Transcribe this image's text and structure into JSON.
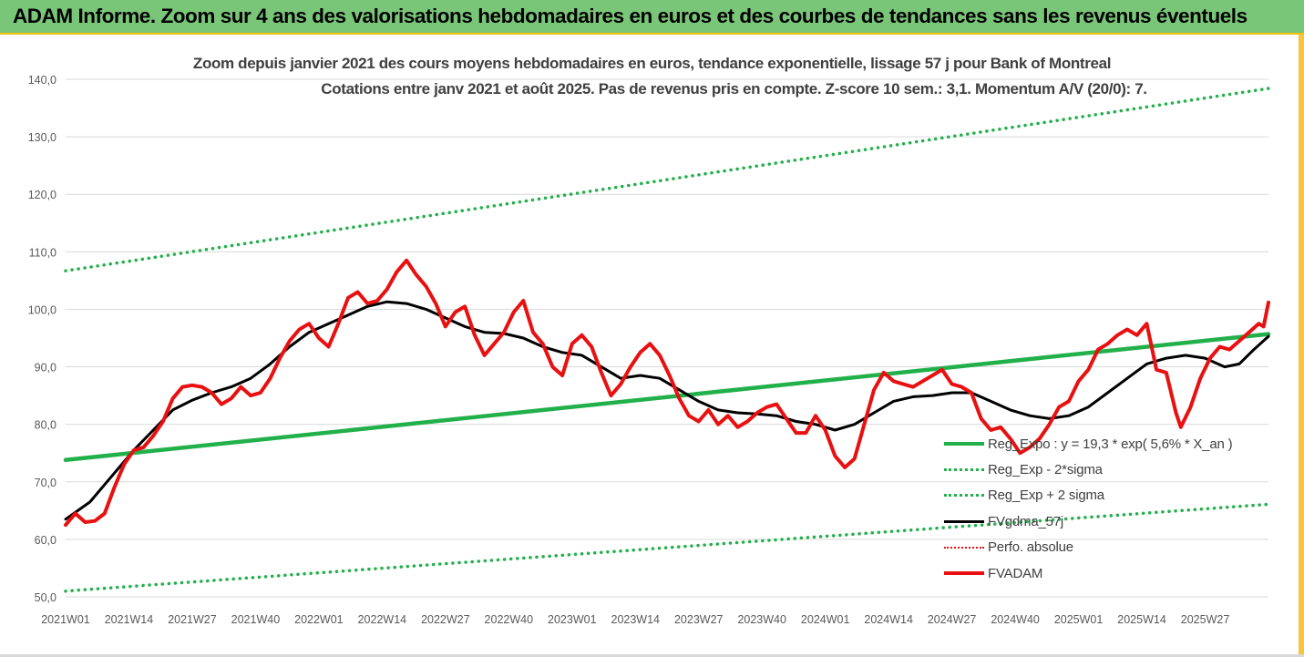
{
  "header": {
    "title": "ADAM Informe. Zoom sur 4 ans des valorisations hebdomadaires en euros et des courbes de tendances sans les revenus éventuels"
  },
  "colors": {
    "banner": "#7ac679",
    "trend": "#22b04b",
    "band": "#22b04b",
    "smooth": "#000000",
    "price": "#e81010",
    "perfo": "#e81010"
  },
  "chart_data": {
    "type": "line",
    "title": "Zoom depuis janvier 2021 des cours moyens hebdomadaires en euros, tendance exponentielle, lissage 57 j pour Bank of Montreal",
    "subtitle": "Cotations entre janv 2021 et août 2025.  Pas de revenus pris en compte. Z-score 10 sem.: 3,1. Momentum A/V (20/0): 7.",
    "ylim": [
      50,
      140
    ],
    "yticks": [
      "50,0",
      "60,0",
      "70,0",
      "80,0",
      "90,0",
      "100,0",
      "110,0",
      "120,0",
      "130,0",
      "140,0"
    ],
    "xticks": [
      "2021W01",
      "2021W14",
      "2021W27",
      "2021W40",
      "2022W01",
      "2022W14",
      "2022W27",
      "2022W40",
      "2023W01",
      "2023W14",
      "2023W27",
      "2023W40",
      "2024W01",
      "2024W14",
      "2024W27",
      "2024W40",
      "2025W01",
      "2025W14",
      "2025W27"
    ],
    "n_weeks": 248,
    "grid": "horizontal",
    "legend_position": "bottom-right",
    "series": [
      {
        "name": "Reg_Expo : y = 19,3 * exp( 5,6% *  X_an )",
        "style": "trend",
        "points": [
          [
            0,
            73.8
          ],
          [
            247,
            95.7
          ]
        ]
      },
      {
        "name": "Reg_Exp - 2*sigma",
        "style": "band",
        "points": [
          [
            0,
            51.0
          ],
          [
            247,
            66.1
          ]
        ]
      },
      {
        "name": "Reg_Exp + 2 sigma",
        "style": "band",
        "points": [
          [
            0,
            106.7
          ],
          [
            247,
            138.4
          ]
        ]
      },
      {
        "name": "FVgdma_57j",
        "style": "smooth",
        "points": [
          [
            0,
            63.5
          ],
          [
            5,
            66.5
          ],
          [
            10,
            71.5
          ],
          [
            14,
            75.5
          ],
          [
            18,
            79.0
          ],
          [
            22,
            82.5
          ],
          [
            26,
            84.2
          ],
          [
            30,
            85.5
          ],
          [
            34,
            86.5
          ],
          [
            38,
            88.0
          ],
          [
            42,
            90.5
          ],
          [
            46,
            93.5
          ],
          [
            50,
            96.0
          ],
          [
            54,
            97.5
          ],
          [
            58,
            99.0
          ],
          [
            62,
            100.5
          ],
          [
            66,
            101.3
          ],
          [
            70,
            101.0
          ],
          [
            74,
            100.0
          ],
          [
            78,
            98.5
          ],
          [
            82,
            97.0
          ],
          [
            86,
            96.0
          ],
          [
            90,
            95.8
          ],
          [
            94,
            95.0
          ],
          [
            98,
            93.5
          ],
          [
            102,
            92.5
          ],
          [
            106,
            92.0
          ],
          [
            110,
            90.0
          ],
          [
            114,
            88.0
          ],
          [
            118,
            88.5
          ],
          [
            122,
            88.0
          ],
          [
            126,
            86.0
          ],
          [
            130,
            84.0
          ],
          [
            134,
            82.5
          ],
          [
            138,
            82.0
          ],
          [
            142,
            81.8
          ],
          [
            146,
            81.5
          ],
          [
            150,
            80.5
          ],
          [
            154,
            80.0
          ],
          [
            158,
            79.0
          ],
          [
            162,
            80.0
          ],
          [
            166,
            82.0
          ],
          [
            170,
            84.0
          ],
          [
            174,
            84.8
          ],
          [
            178,
            85.0
          ],
          [
            182,
            85.5
          ],
          [
            186,
            85.5
          ],
          [
            190,
            84.0
          ],
          [
            194,
            82.5
          ],
          [
            198,
            81.5
          ],
          [
            202,
            81.0
          ],
          [
            206,
            81.5
          ],
          [
            210,
            83.0
          ],
          [
            214,
            85.5
          ],
          [
            218,
            88.0
          ],
          [
            222,
            90.5
          ],
          [
            226,
            91.5
          ],
          [
            230,
            92.0
          ],
          [
            234,
            91.5
          ],
          [
            238,
            90.0
          ],
          [
            241,
            90.5
          ],
          [
            244,
            93.0
          ],
          [
            247,
            95.3
          ]
        ]
      },
      {
        "name": "Perfo. absolue",
        "style": "perfo",
        "points": []
      },
      {
        "name": "FVADAM",
        "style": "price",
        "points": [
          [
            0,
            62.5
          ],
          [
            2,
            64.5
          ],
          [
            4,
            63.0
          ],
          [
            6,
            63.2
          ],
          [
            8,
            64.5
          ],
          [
            10,
            69.0
          ],
          [
            12,
            73.0
          ],
          [
            14,
            75.5
          ],
          [
            16,
            76.0
          ],
          [
            18,
            78.0
          ],
          [
            20,
            80.5
          ],
          [
            22,
            84.5
          ],
          [
            24,
            86.5
          ],
          [
            26,
            86.8
          ],
          [
            28,
            86.5
          ],
          [
            30,
            85.5
          ],
          [
            32,
            83.5
          ],
          [
            34,
            84.5
          ],
          [
            36,
            86.5
          ],
          [
            38,
            85.0
          ],
          [
            40,
            85.5
          ],
          [
            42,
            88.0
          ],
          [
            44,
            91.5
          ],
          [
            46,
            94.5
          ],
          [
            48,
            96.5
          ],
          [
            50,
            97.5
          ],
          [
            52,
            95.0
          ],
          [
            54,
            93.5
          ],
          [
            56,
            97.5
          ],
          [
            58,
            102.0
          ],
          [
            60,
            103.0
          ],
          [
            62,
            101.0
          ],
          [
            64,
            101.5
          ],
          [
            66,
            103.5
          ],
          [
            68,
            106.5
          ],
          [
            70,
            108.5
          ],
          [
            72,
            106.0
          ],
          [
            74,
            104.0
          ],
          [
            76,
            101.0
          ],
          [
            78,
            97.0
          ],
          [
            80,
            99.5
          ],
          [
            82,
            100.5
          ],
          [
            84,
            95.5
          ],
          [
            86,
            92.0
          ],
          [
            88,
            94.0
          ],
          [
            90,
            96.0
          ],
          [
            92,
            99.5
          ],
          [
            94,
            101.5
          ],
          [
            96,
            96.0
          ],
          [
            98,
            94.0
          ],
          [
            100,
            90.0
          ],
          [
            102,
            88.5
          ],
          [
            104,
            94.0
          ],
          [
            106,
            95.5
          ],
          [
            108,
            93.5
          ],
          [
            110,
            89.0
          ],
          [
            112,
            85.0
          ],
          [
            114,
            87.0
          ],
          [
            116,
            90.0
          ],
          [
            118,
            92.5
          ],
          [
            120,
            94.0
          ],
          [
            122,
            92.0
          ],
          [
            124,
            88.5
          ],
          [
            126,
            84.5
          ],
          [
            128,
            81.5
          ],
          [
            130,
            80.5
          ],
          [
            132,
            82.5
          ],
          [
            134,
            80.0
          ],
          [
            136,
            81.5
          ],
          [
            138,
            79.5
          ],
          [
            140,
            80.5
          ],
          [
            142,
            82.0
          ],
          [
            144,
            83.0
          ],
          [
            146,
            83.5
          ],
          [
            148,
            81.0
          ],
          [
            150,
            78.5
          ],
          [
            152,
            78.5
          ],
          [
            154,
            81.5
          ],
          [
            156,
            79.0
          ],
          [
            158,
            74.5
          ],
          [
            160,
            72.5
          ],
          [
            162,
            74.0
          ],
          [
            164,
            80.0
          ],
          [
            166,
            86.0
          ],
          [
            168,
            89.0
          ],
          [
            170,
            87.5
          ],
          [
            172,
            87.0
          ],
          [
            174,
            86.5
          ],
          [
            176,
            87.5
          ],
          [
            178,
            88.5
          ],
          [
            180,
            89.5
          ],
          [
            182,
            87.0
          ],
          [
            184,
            86.5
          ],
          [
            186,
            85.5
          ],
          [
            188,
            81.0
          ],
          [
            190,
            79.0
          ],
          [
            192,
            79.5
          ],
          [
            194,
            77.5
          ],
          [
            196,
            75.0
          ],
          [
            198,
            76.0
          ],
          [
            200,
            77.5
          ],
          [
            202,
            80.0
          ],
          [
            204,
            83.0
          ],
          [
            206,
            84.0
          ],
          [
            208,
            87.5
          ],
          [
            210,
            89.5
          ],
          [
            212,
            93.0
          ],
          [
            214,
            94.0
          ],
          [
            216,
            95.5
          ],
          [
            218,
            96.5
          ],
          [
            220,
            95.5
          ],
          [
            222,
            97.5
          ],
          [
            224,
            89.5
          ],
          [
            226,
            89.0
          ],
          [
            228,
            82.0
          ],
          [
            229,
            79.5
          ],
          [
            231,
            83.0
          ],
          [
            233,
            88.0
          ],
          [
            235,
            91.5
          ],
          [
            237,
            93.5
          ],
          [
            239,
            93.0
          ],
          [
            241,
            94.5
          ],
          [
            243,
            96.0
          ],
          [
            245,
            97.5
          ],
          [
            246,
            97.0
          ],
          [
            247,
            101.2
          ]
        ]
      }
    ]
  }
}
